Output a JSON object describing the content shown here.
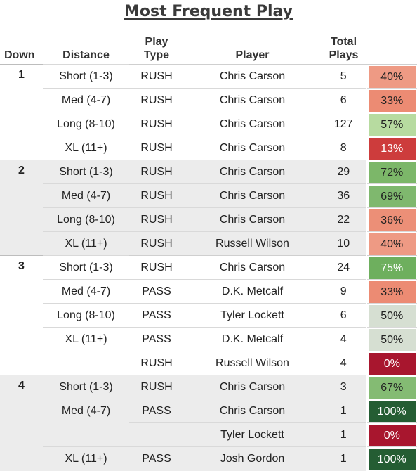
{
  "title": "Most Frequent Play",
  "headers": {
    "down": "Down",
    "distance": "Distance",
    "play_type_1": "Play",
    "play_type_2": "Type",
    "player": "Player",
    "total_1": "Total",
    "total_2": "Plays"
  },
  "rows": [
    {
      "down": "1",
      "distance": "Short (1-3)",
      "type": "RUSH",
      "player": "Chris Carson",
      "total": "5",
      "pct": "40%",
      "color": "#ee9a84",
      "light": false
    },
    {
      "down": "",
      "distance": "Med (4-7)",
      "type": "RUSH",
      "player": "Chris Carson",
      "total": "6",
      "pct": "33%",
      "color": "#ec8b73",
      "light": false
    },
    {
      "down": "",
      "distance": "Long (8-10)",
      "type": "RUSH",
      "player": "Chris Carson",
      "total": "127",
      "pct": "57%",
      "color": "#b7dba0",
      "light": false
    },
    {
      "down": "",
      "distance": "XL (11+)",
      "type": "RUSH",
      "player": "Chris Carson",
      "total": "8",
      "pct": "13%",
      "color": "#cd3c3c",
      "light": true
    },
    {
      "down": "2",
      "distance": "Short (1-3)",
      "type": "RUSH",
      "player": "Chris Carson",
      "total": "29",
      "pct": "72%",
      "color": "#7cb769",
      "light": false
    },
    {
      "down": "",
      "distance": "Med (4-7)",
      "type": "RUSH",
      "player": "Chris Carson",
      "total": "36",
      "pct": "69%",
      "color": "#7fb86e",
      "light": false
    },
    {
      "down": "",
      "distance": "Long (8-10)",
      "type": "RUSH",
      "player": "Chris Carson",
      "total": "22",
      "pct": "36%",
      "color": "#ec8f77",
      "light": false
    },
    {
      "down": "",
      "distance": "XL (11+)",
      "type": "RUSH",
      "player": "Russell Wilson",
      "total": "10",
      "pct": "40%",
      "color": "#ee9a84",
      "light": false
    },
    {
      "down": "3",
      "distance": "Short (1-3)",
      "type": "RUSH",
      "player": "Chris Carson",
      "total": "24",
      "pct": "75%",
      "color": "#6eaf5e",
      "light": true
    },
    {
      "down": "",
      "distance": "Med (4-7)",
      "type": "PASS",
      "player": "D.K. Metcalf",
      "total": "9",
      "pct": "33%",
      "color": "#ec8b73",
      "light": false
    },
    {
      "down": "",
      "distance": "Long (8-10)",
      "type": "PASS",
      "player": "Tyler Lockett",
      "total": "6",
      "pct": "50%",
      "color": "#d6dfd2",
      "light": false
    },
    {
      "down": "",
      "distance": "XL (11+)",
      "type": "PASS",
      "player": "D.K. Metcalf",
      "total": "4",
      "pct": "50%",
      "color": "#d6dfd2",
      "light": false
    },
    {
      "down": "",
      "distance": "",
      "type": "RUSH",
      "player": "Russell Wilson",
      "total": "4",
      "pct": "0%",
      "color": "#a8162e",
      "light": true
    },
    {
      "down": "4",
      "distance": "Short (1-3)",
      "type": "RUSH",
      "player": "Chris Carson",
      "total": "3",
      "pct": "67%",
      "color": "#84bb73",
      "light": false
    },
    {
      "down": "",
      "distance": "Med (4-7)",
      "type": "PASS",
      "player": "Chris Carson",
      "total": "1",
      "pct": "100%",
      "color": "#245d33",
      "light": true
    },
    {
      "down": "",
      "distance": "",
      "type": "",
      "player": "Tyler Lockett",
      "total": "1",
      "pct": "0%",
      "color": "#a8162e",
      "light": true
    },
    {
      "down": "",
      "distance": "XL (11+)",
      "type": "PASS",
      "player": "Josh Gordon",
      "total": "1",
      "pct": "100%",
      "color": "#245d33",
      "light": true
    }
  ]
}
